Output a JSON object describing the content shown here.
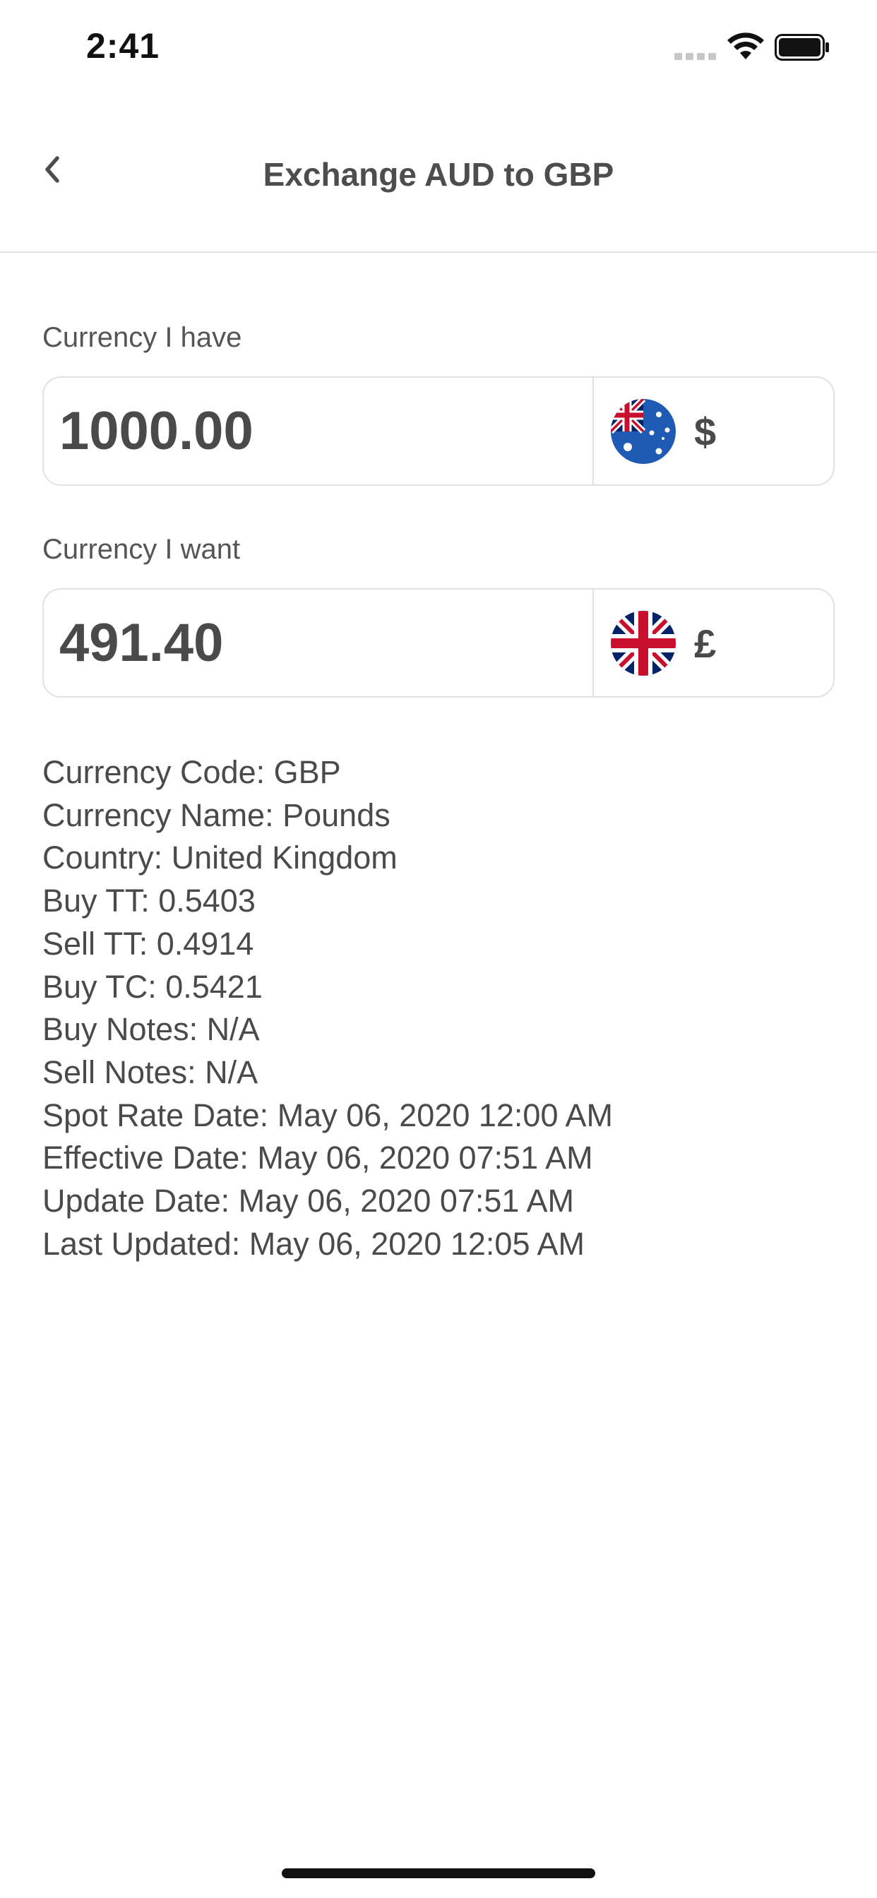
{
  "status_bar": {
    "time": "2:41",
    "icons": [
      "signal-icon",
      "wifi-icon",
      "battery-icon"
    ]
  },
  "nav": {
    "title": "Exchange AUD to GBP",
    "back_icon": "chevron-left-icon"
  },
  "have": {
    "label": "Currency I have",
    "amount": "1000.00",
    "flag": "australia-flag-icon",
    "symbol": "$"
  },
  "want": {
    "label": "Currency I want",
    "amount": "491.40",
    "flag": "united-kingdom-flag-icon",
    "symbol": "£"
  },
  "details": [
    "Currency Code: GBP",
    "Currency Name: Pounds",
    "Country: United Kingdom",
    "Buy TT: 0.5403",
    "Sell TT: 0.4914",
    "Buy TC: 0.5421",
    "Buy Notes: N/A",
    "Sell Notes: N/A",
    "Spot Rate Date: May 06, 2020 12:00 AM",
    "Effective Date: May 06, 2020 07:51 AM",
    "Update Date: May 06, 2020 07:51 AM",
    "Last Updated: May 06, 2020 12:05 AM"
  ],
  "colors": {
    "text": "#4a4a4a",
    "border": "#e1e1e1",
    "aus_blue": "#1f5bb5",
    "uk_red": "#c8102e",
    "uk_blue": "#012169"
  }
}
